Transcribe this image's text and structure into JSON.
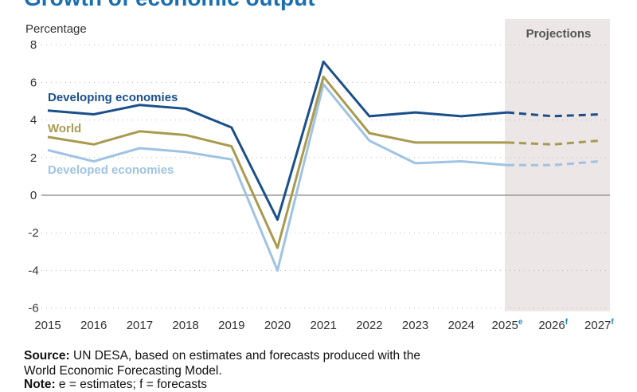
{
  "title": "Growth of economic output",
  "chart_data": {
    "type": "line",
    "title": "Growth of economic output",
    "ylabel": "Percentage",
    "xlabel": "",
    "ylim": [
      -6,
      8
    ],
    "yticks": [
      8,
      6,
      4,
      2,
      0,
      -2,
      -4,
      -6
    ],
    "grid": true,
    "categories": [
      "2015",
      "2016",
      "2017",
      "2018",
      "2019",
      "2020",
      "2021",
      "2022",
      "2023",
      "2024",
      "2025",
      "2026",
      "2027"
    ],
    "category_superscripts": [
      "",
      "",
      "",
      "",
      "",
      "",
      "",
      "",
      "",
      "",
      "e",
      "f",
      "f"
    ],
    "projection_label": "Projections",
    "projection_start": "2025",
    "projection_end": "2027",
    "series": [
      {
        "name": "Developing economies",
        "color": "#1b4f8a",
        "values": [
          4.5,
          4.3,
          4.8,
          4.6,
          3.6,
          -1.3,
          7.1,
          4.2,
          4.4,
          4.2,
          4.4,
          4.2,
          4.3
        ]
      },
      {
        "name": "World",
        "color": "#a99a4f",
        "values": [
          3.1,
          2.7,
          3.4,
          3.2,
          2.6,
          -2.8,
          6.3,
          3.3,
          2.8,
          2.8,
          2.8,
          2.7,
          2.9
        ]
      },
      {
        "name": "Developed economies",
        "color": "#9fc3e2",
        "values": [
          2.4,
          1.8,
          2.5,
          2.3,
          1.9,
          -4.0,
          5.9,
          2.9,
          1.7,
          1.8,
          1.6,
          1.6,
          1.8
        ]
      }
    ],
    "dashed_from": "2025"
  },
  "source": {
    "label": "Source:",
    "text": " UN DESA, based on estimates and forecasts produced with the",
    "text2": "World Economic Forecasting Model."
  },
  "note": {
    "label": "Note:",
    "text": " e = estimates; f = forecasts"
  },
  "colors": {
    "title": "#1a6fb0",
    "projection_bg": "#ece6e6",
    "superscript": "#1a8ad0"
  }
}
